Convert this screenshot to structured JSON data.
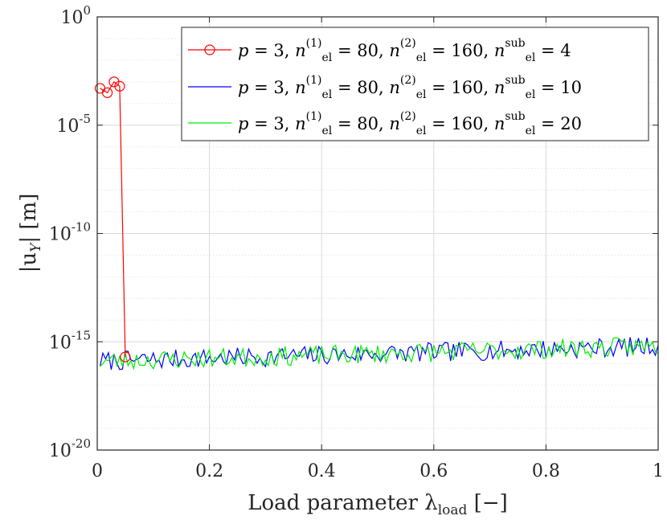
{
  "chart_data": {
    "type": "line",
    "title": "",
    "xlabel": "Load parameter λ_load [−]",
    "xlabel_parts": {
      "main": "Load parameter λ",
      "sub": "load",
      "unit": " [−]"
    },
    "ylabel": "|u_Y| [m]",
    "ylabel_parts": {
      "open": "|u",
      "sub": "Y",
      "close": "| [m]"
    },
    "xlim": [
      0,
      1
    ],
    "ylim_log10": [
      -20,
      0
    ],
    "yscale": "log",
    "grid": true,
    "legend_position": "top-right",
    "x_ticks": [
      {
        "value": 0,
        "label": "0"
      },
      {
        "value": 0.2,
        "label": "0.2"
      },
      {
        "value": 0.4,
        "label": "0.4"
      },
      {
        "value": 0.6,
        "label": "0.6"
      },
      {
        "value": 0.8,
        "label": "0.8"
      },
      {
        "value": 1,
        "label": "1"
      }
    ],
    "y_ticks": [
      {
        "exp": 0,
        "base": "10",
        "power": "0"
      },
      {
        "exp": -5,
        "base": "10",
        "power": "-5"
      },
      {
        "exp": -10,
        "base": "10",
        "power": "-10"
      },
      {
        "exp": -15,
        "base": "10",
        "power": "-15"
      },
      {
        "exp": -20,
        "base": "10",
        "power": "-20"
      }
    ],
    "series": [
      {
        "name": "p = 3, n_el^(1) = 80, n_el^(2) = 160, n_el^sub = 4",
        "label": {
          "p": "3",
          "n1": "80",
          "n2": "160",
          "nsub": "4"
        },
        "color": "#ff0000",
        "marker": "circle",
        "x": [
          0.005,
          0.018,
          0.03,
          0.04,
          0.05
        ],
        "y_log10": [
          -3.3,
          -3.5,
          -3.0,
          -3.2,
          -15.7
        ]
      },
      {
        "name": "p = 3, n_el^(1) = 80, n_el^(2) = 160, n_el^sub = 10",
        "label": {
          "p": "3",
          "n1": "80",
          "n2": "160",
          "nsub": "10"
        },
        "color": "#0000ff",
        "marker": "none",
        "seed": 7,
        "x_start": 0.005,
        "x_end": 1.0,
        "points": 200,
        "y_base_start": -15.9,
        "y_base_end": -15.2,
        "noise": 0.9
      },
      {
        "name": "p = 3, n_el^(1) = 80, n_el^(2) = 160, n_el^sub = 20",
        "label": {
          "p": "3",
          "n1": "80",
          "n2": "160",
          "nsub": "20"
        },
        "color": "#00ee00",
        "marker": "none",
        "seed": 23,
        "x_start": 0.005,
        "x_end": 1.0,
        "points": 200,
        "y_base_start": -15.9,
        "y_base_end": -15.2,
        "noise": 0.9
      }
    ]
  },
  "legend": {
    "entries": [
      {
        "p_label": "p",
        "n_label": "n",
        "sub_el": "el",
        "sup1": "(1)",
        "sup2": "(2)",
        "supsub": "sub",
        "p": "3",
        "n1": "80",
        "n2": "160",
        "nsub": "4"
      },
      {
        "p_label": "p",
        "n_label": "n",
        "sub_el": "el",
        "sup1": "(1)",
        "sup2": "(2)",
        "supsub": "sub",
        "p": "3",
        "n1": "80",
        "n2": "160",
        "nsub": "10"
      },
      {
        "p_label": "p",
        "n_label": "n",
        "sub_el": "el",
        "sup1": "(1)",
        "sup2": "(2)",
        "supsub": "sub",
        "p": "3",
        "n1": "80",
        "n2": "160",
        "nsub": "20"
      }
    ]
  }
}
